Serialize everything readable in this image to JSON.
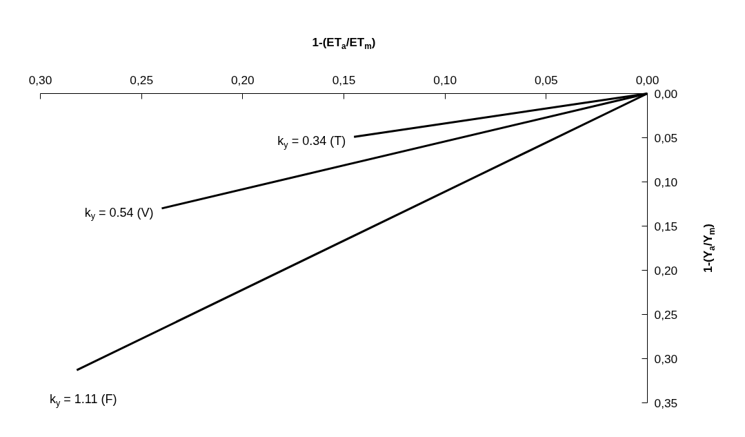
{
  "chart_data": {
    "type": "line",
    "xlabel": "1-(ET$_{a}$/ET$_{m}$)",
    "y2label": "1-(Y$_{a}$/Y$_{m}$)",
    "series": [
      {
        "color": "#000000",
        "x": [
          0.0,
          0.145
        ],
        "values": [
          0.0,
          0.049
        ]
      },
      {
        "color": "#000000",
        "x": [
          0.0,
          0.24
        ],
        "values": [
          0.0,
          0.13
        ]
      },
      {
        "color": "#000000",
        "x": [
          0.0,
          0.282
        ],
        "values": [
          0.0,
          0.313
        ]
      }
    ],
    "xlim": [
      0.3,
      0.0
    ],
    "xticks": [
      {
        "value": 0.3,
        "label": "0,30"
      },
      {
        "value": 0.25,
        "label": "0,25"
      },
      {
        "value": 0.2,
        "label": "0,20"
      },
      {
        "value": 0.15,
        "label": "0,15"
      },
      {
        "value": 0.1,
        "label": "0,10"
      },
      {
        "value": 0.05,
        "label": "0,05"
      },
      {
        "value": 0.0,
        "label": "0,00"
      }
    ],
    "ylim": [
      0.35,
      0.0
    ],
    "yticks": [
      {
        "value": 0.0,
        "label": "0,00"
      },
      {
        "value": 0.05,
        "label": "0,05"
      },
      {
        "value": 0.1,
        "label": "0,10"
      },
      {
        "value": 0.15,
        "label": "0,15"
      },
      {
        "value": 0.2,
        "label": "0,20"
      },
      {
        "value": 0.25,
        "label": "0,25"
      },
      {
        "value": 0.3,
        "label": "0,30"
      },
      {
        "value": 0.35,
        "label": "0,35"
      }
    ],
    "annotations": [
      {
        "text": "k$_{y}$ = 0.34 (T)",
        "x": 0.145,
        "y": 0.049
      },
      {
        "text": "k$_{y}$ = 0.54 (V)",
        "x": 0.24,
        "y": 0.13
      },
      {
        "text": "k$_{y}$ = 1.11 (F)",
        "x": 0.282,
        "y": 0.313
      }
    ],
    "grid": false,
    "marker": "none",
    "line_style": "solid"
  }
}
